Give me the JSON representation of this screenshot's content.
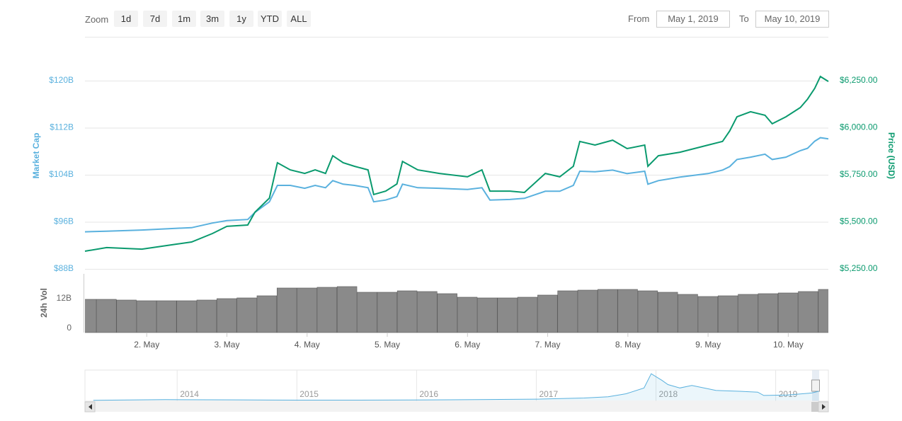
{
  "controls": {
    "zoom_label": "Zoom",
    "zoom_buttons": [
      "1d",
      "7d",
      "1m",
      "3m",
      "1y",
      "YTD",
      "ALL"
    ],
    "from_label": "From",
    "from_value": "May 1, 2019",
    "to_label": "To",
    "to_value": "May 10, 2019"
  },
  "chart_data": [
    {
      "type": "line",
      "x": [
        1.23,
        1.5,
        1.94,
        2.38,
        2.56,
        2.82,
        3.0,
        3.26,
        3.35,
        3.53,
        3.63,
        3.79,
        3.97,
        4.1,
        4.23,
        4.32,
        4.45,
        4.59,
        4.76,
        4.83,
        4.98,
        5.12,
        5.19,
        5.38,
        5.65,
        6.0,
        6.18,
        6.28,
        6.53,
        6.71,
        6.97,
        7.15,
        7.32,
        7.4,
        7.59,
        7.81,
        7.99,
        8.21,
        8.25,
        8.38,
        8.65,
        9.0,
        9.18,
        9.27,
        9.36,
        9.53,
        9.71,
        9.8,
        9.97,
        10.15,
        10.24,
        10.33,
        10.4,
        10.5
      ],
      "series": [
        {
          "name": "Market Cap",
          "color": "#5ab1de",
          "values": [
            94.3,
            94.4,
            94.6,
            94.9,
            95.0,
            95.8,
            96.2,
            96.4,
            97.6,
            99.4,
            102.2,
            102.2,
            101.7,
            102.2,
            101.8,
            103.0,
            102.4,
            102.2,
            101.8,
            99.4,
            99.7,
            100.3,
            102.4,
            101.8,
            101.7,
            101.5,
            101.8,
            99.7,
            99.8,
            100.0,
            101.2,
            101.2,
            102.2,
            104.6,
            104.5,
            104.8,
            104.2,
            104.6,
            102.4,
            103.0,
            103.6,
            104.2,
            104.8,
            105.4,
            106.6,
            107.0,
            107.5,
            106.6,
            107.0,
            108.1,
            108.5,
            109.7,
            110.3,
            110.1
          ]
        },
        {
          "name": "Price (USD)",
          "color": "#0a9a6e",
          "axis": "y2",
          "values": [
            5344,
            5363,
            5355,
            5382,
            5393,
            5438,
            5476,
            5483,
            5551,
            5626,
            5814,
            5776,
            5757,
            5776,
            5757,
            5851,
            5814,
            5795,
            5776,
            5645,
            5663,
            5701,
            5821,
            5776,
            5757,
            5739,
            5776,
            5663,
            5663,
            5656,
            5757,
            5739,
            5795,
            5927,
            5908,
            5934,
            5889,
            5908,
            5795,
            5851,
            5870,
            5908,
            5927,
            5983,
            6058,
            6085,
            6066,
            6021,
            6058,
            6107,
            6152,
            6209,
            6272,
            6246
          ]
        }
      ],
      "xlim": [
        1.23,
        10.5
      ],
      "xticks": [
        {
          "value": 2,
          "label": "2. May"
        },
        {
          "value": 3,
          "label": "3. May"
        },
        {
          "value": 4,
          "label": "4. May"
        },
        {
          "value": 5,
          "label": "5. May"
        },
        {
          "value": 6,
          "label": "6. May"
        },
        {
          "value": 7,
          "label": "7. May"
        },
        {
          "value": 8,
          "label": "8. May"
        },
        {
          "value": 9,
          "label": "9. May"
        },
        {
          "value": 10,
          "label": "10. May"
        }
      ],
      "ylim": [
        88,
        120
      ],
      "yticks": [
        {
          "value": 88,
          "label": "$88B"
        },
        {
          "value": 96,
          "label": "$96B"
        },
        {
          "value": 104,
          "label": "$104B"
        },
        {
          "value": 112,
          "label": "$112B"
        },
        {
          "value": 120,
          "label": "$120B"
        }
      ],
      "y2lim": [
        5250,
        6250
      ],
      "y2ticks": [
        {
          "value": 5250,
          "label": "$5,250.00"
        },
        {
          "value": 5500,
          "label": "$5,500.00"
        },
        {
          "value": 5750,
          "label": "$5,750.00"
        },
        {
          "value": 6000,
          "label": "$6,000.00"
        },
        {
          "value": 6250,
          "label": "$6,250.00"
        }
      ],
      "grid": true
    },
    {
      "type": "bar",
      "ylabel": "24h Vol",
      "color": "#8a8a8a",
      "x": [
        1.25,
        1.5,
        1.75,
        2.0,
        2.25,
        2.5,
        2.75,
        3.0,
        3.25,
        3.5,
        3.75,
        4.0,
        4.25,
        4.5,
        4.75,
        5.0,
        5.25,
        5.5,
        5.75,
        6.0,
        6.25,
        6.5,
        6.75,
        7.0,
        7.25,
        7.5,
        7.75,
        8.0,
        8.25,
        8.5,
        8.75,
        9.0,
        9.25,
        9.5,
        9.75,
        10.0,
        10.25,
        10.5
      ],
      "values": [
        11.75,
        11.75,
        11.5,
        11.25,
        11.25,
        11.25,
        11.5,
        12,
        12.25,
        13,
        15.75,
        15.75,
        16,
        16.25,
        14.25,
        14.25,
        14.75,
        14.5,
        13.75,
        12.5,
        12.25,
        12.25,
        12.5,
        13.25,
        14.75,
        15,
        15.25,
        15.25,
        14.75,
        14.25,
        13.5,
        12.75,
        13,
        13.5,
        13.75,
        14,
        14.5,
        15.25
      ],
      "xlim": [
        1.23,
        10.5
      ],
      "ylim": [
        0,
        20.75
      ],
      "yticks": [
        0,
        {
          "value": 12,
          "label": "12B"
        }
      ]
    },
    {
      "type": "area",
      "color": "#5ab1de",
      "x": [
        2013.3,
        2013.9,
        2014.5,
        2015.0,
        2015.5,
        2016.0,
        2016.5,
        2017.0,
        2017.4,
        2017.6,
        2017.75,
        2017.9,
        2017.96,
        2018.05,
        2018.1,
        2018.2,
        2018.3,
        2018.5,
        2018.7,
        2018.85,
        2018.9,
        2019.1,
        2019.3,
        2019.36
      ],
      "values": [
        2,
        10,
        8,
        4,
        4,
        6,
        10,
        16,
        30,
        45,
        80,
        150,
        320,
        240,
        190,
        150,
        180,
        120,
        110,
        100,
        60,
        65,
        90,
        110
      ],
      "xlim": [
        2013.23,
        2019.44
      ],
      "ylim": [
        0,
        330
      ],
      "xticks": [
        2014,
        2015,
        2016,
        2017,
        2018,
        2019
      ]
    }
  ]
}
